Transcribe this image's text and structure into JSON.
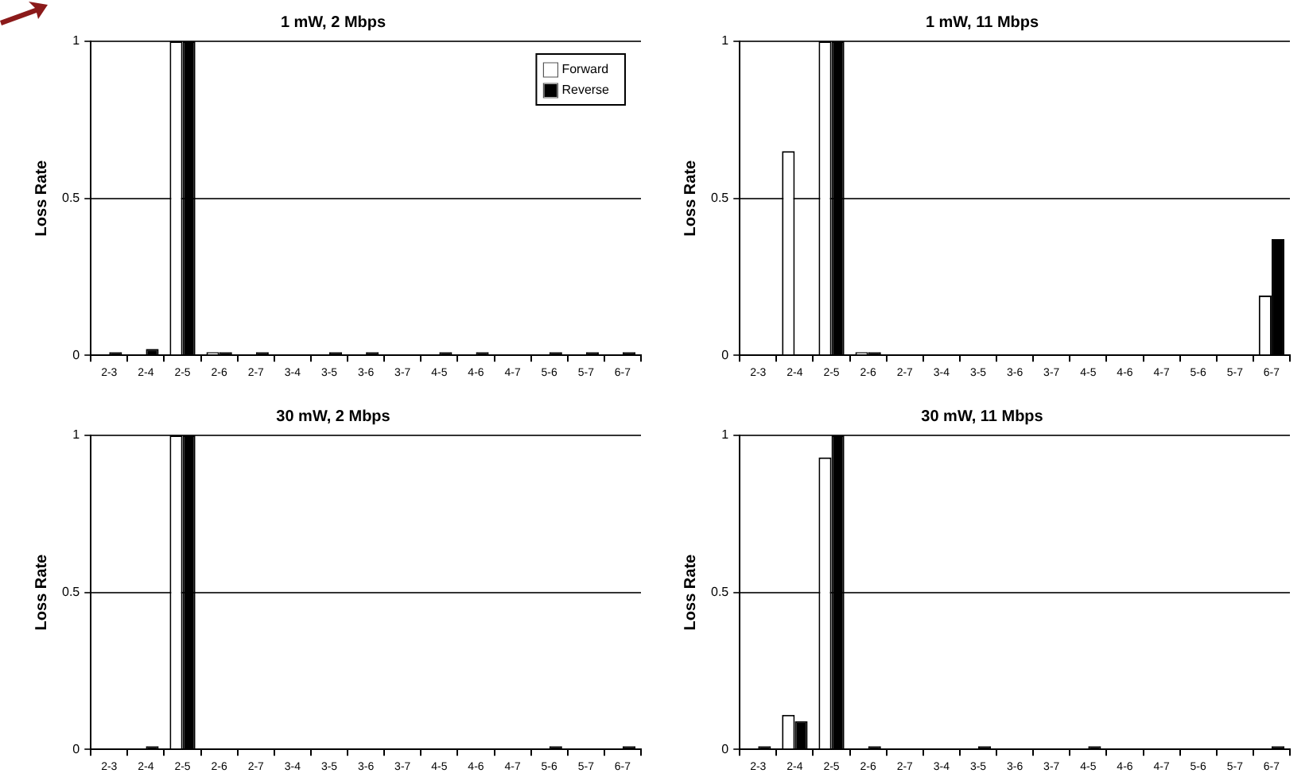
{
  "chart_data": [
    {
      "type": "bar",
      "title": "1 mW, 2 Mbps",
      "ylabel": "Loss Rate",
      "categories": [
        "2-3",
        "2-4",
        "2-5",
        "2-6",
        "2-7",
        "3-4",
        "3-5",
        "3-6",
        "3-7",
        "4-5",
        "4-6",
        "4-7",
        "5-6",
        "5-7",
        "6-7"
      ],
      "series": [
        {
          "name": "Forward",
          "color": "#ffffff",
          "values": [
            0,
            0,
            1,
            0.01,
            0,
            0,
            0,
            0,
            0,
            0,
            0,
            0,
            0,
            0,
            0
          ]
        },
        {
          "name": "Reverse",
          "color": "#000000",
          "values": [
            0.01,
            0.02,
            1,
            0.01,
            0.01,
            0,
            0.01,
            0.01,
            0,
            0.01,
            0.01,
            0,
            0.01,
            0.01,
            0.01
          ]
        }
      ],
      "ylim": [
        0,
        1
      ],
      "yticks": [
        0,
        0.5,
        1
      ],
      "grid": "y",
      "legend": "top right"
    },
    {
      "type": "bar",
      "title": "1 mW, 11 Mbps",
      "ylabel": "Loss Rate",
      "categories": [
        "2-3",
        "2-4",
        "2-5",
        "2-6",
        "2-7",
        "3-4",
        "3-5",
        "3-6",
        "3-7",
        "4-5",
        "4-6",
        "4-7",
        "5-6",
        "5-7",
        "6-7"
      ],
      "series": [
        {
          "color": "#ffffff",
          "values": [
            0,
            0.65,
            1,
            0.01,
            0,
            0,
            0,
            0,
            0,
            0,
            0,
            0,
            0,
            0,
            0.19
          ]
        },
        {
          "color": "#000000",
          "values": [
            0,
            0,
            1,
            0.01,
            0,
            0,
            0,
            0,
            0,
            0,
            0,
            0,
            0,
            0,
            0.37
          ]
        }
      ],
      "ylim": [
        0,
        1
      ],
      "yticks": [
        0,
        0.5,
        1
      ],
      "grid": "y"
    },
    {
      "type": "bar",
      "title": "30 mW, 2 Mbps",
      "ylabel": "Loss Rate",
      "categories": [
        "2-3",
        "2-4",
        "2-5",
        "2-6",
        "2-7",
        "3-4",
        "3-5",
        "3-6",
        "3-7",
        "4-5",
        "4-6",
        "4-7",
        "5-6",
        "5-7",
        "6-7"
      ],
      "series": [
        {
          "color": "#ffffff",
          "values": [
            0,
            0,
            1,
            0,
            0,
            0,
            0,
            0,
            0,
            0,
            0,
            0,
            0,
            0,
            0
          ]
        },
        {
          "color": "#000000",
          "values": [
            0,
            0.01,
            1,
            0,
            0,
            0,
            0,
            0,
            0,
            0,
            0,
            0,
            0.01,
            0,
            0.01
          ]
        }
      ],
      "ylim": [
        0,
        1
      ],
      "yticks": [
        0,
        0.5,
        1
      ],
      "grid": "y"
    },
    {
      "type": "bar",
      "title": "30 mW, 11 Mbps",
      "ylabel": "Loss Rate",
      "categories": [
        "2-3",
        "2-4",
        "2-5",
        "2-6",
        "2-7",
        "3-4",
        "3-5",
        "3-6",
        "3-7",
        "4-5",
        "4-6",
        "4-7",
        "5-6",
        "5-7",
        "6-7"
      ],
      "series": [
        {
          "color": "#ffffff",
          "values": [
            0,
            0.11,
            0.93,
            0,
            0,
            0,
            0,
            0,
            0,
            0,
            0,
            0,
            0,
            0,
            0
          ]
        },
        {
          "color": "#000000",
          "values": [
            0.01,
            0.09,
            1,
            0.01,
            0,
            0,
            0.01,
            0,
            0,
            0.01,
            0,
            0,
            0,
            0,
            0.01
          ]
        }
      ],
      "ylim": [
        0,
        1
      ],
      "yticks": [
        0,
        0.5,
        1
      ],
      "grid": "y"
    }
  ]
}
